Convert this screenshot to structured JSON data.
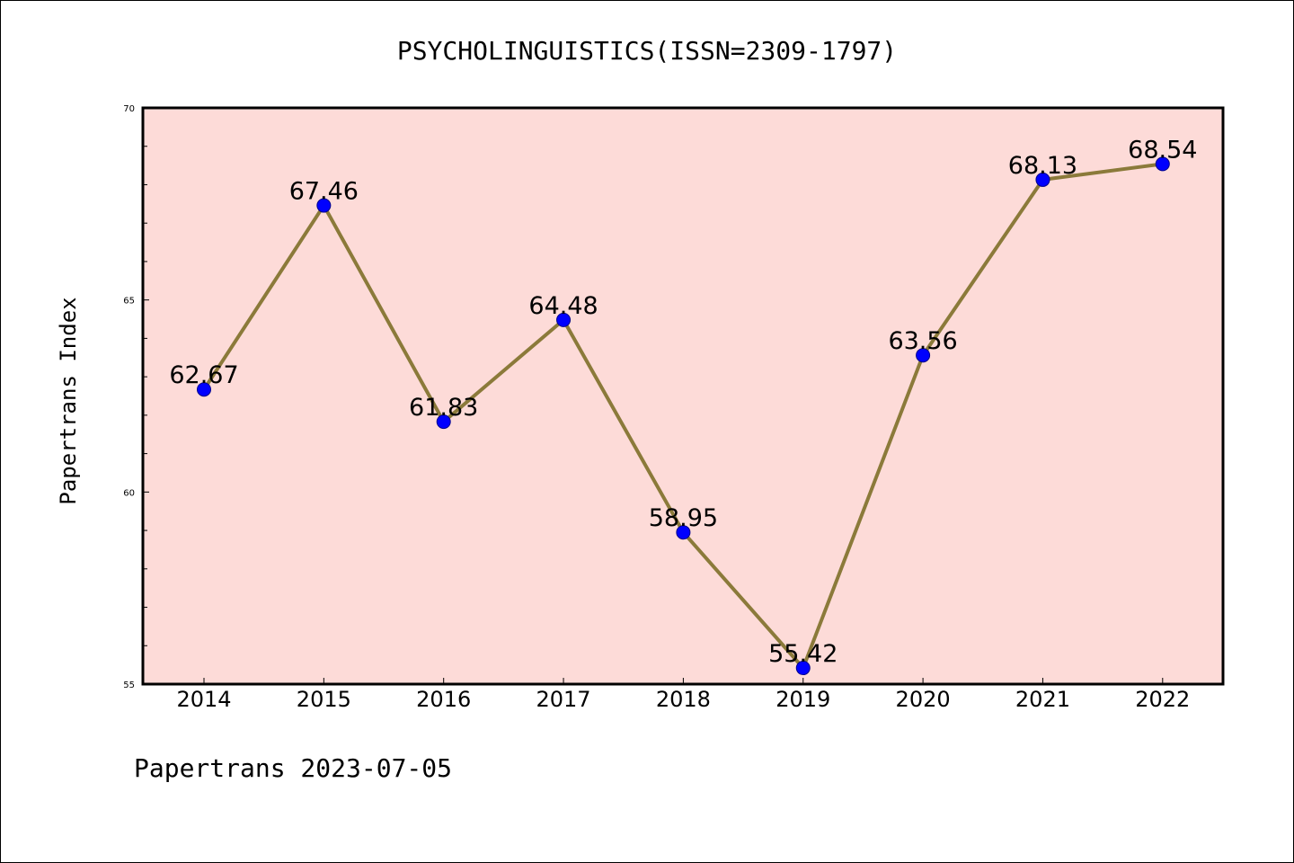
{
  "title": "PSYCHOLINGUISTICS(ISSN=2309-1797)",
  "footer": "Papertrans 2023-07-05",
  "colors": {
    "plot_background": "#FDDBD8",
    "line": "#8B7A3A",
    "marker": "#0000FF",
    "frame": "#000000"
  },
  "chart_data": {
    "type": "line",
    "title": "PSYCHOLINGUISTICS(ISSN=2309-1797)",
    "xlabel": "",
    "ylabel": "Papertrans Index",
    "categories": [
      "2014",
      "2015",
      "2016",
      "2017",
      "2018",
      "2019",
      "2020",
      "2021",
      "2022"
    ],
    "series": [
      {
        "values": [
          62.67,
          67.46,
          61.83,
          64.48,
          58.95,
          55.42,
          63.56,
          68.13,
          68.54
        ],
        "labels": [
          "62.67",
          "67.46",
          "61.83",
          "64.48",
          "58.95",
          "55.42",
          "63.56",
          "68.13",
          "68.54"
        ]
      }
    ],
    "ylim": [
      55,
      70
    ],
    "yticks": [
      55,
      60,
      65,
      70
    ],
    "ytick_labels": [
      "55",
      "60",
      "65",
      "70"
    ],
    "grid": false,
    "legend": "none"
  }
}
